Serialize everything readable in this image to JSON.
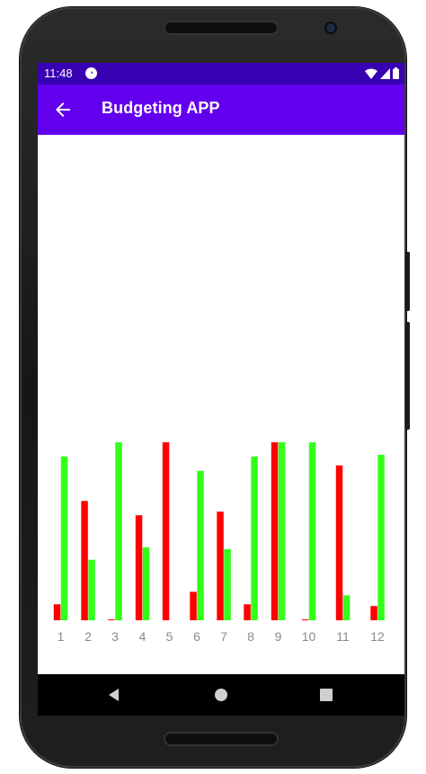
{
  "status_bar": {
    "time": "11:48",
    "app_icon": "app-notification-icon",
    "icons": [
      "wifi-icon",
      "signal-icon",
      "battery-icon"
    ]
  },
  "app_bar": {
    "title": "Budgeting APP",
    "back_icon": "arrow-back-icon",
    "color": "#6200ee",
    "status_color": "#3700b3"
  },
  "chart_data": {
    "type": "bar",
    "categories": [
      "1",
      "2",
      "3",
      "4",
      "5",
      "6",
      "7",
      "8",
      "9",
      "10",
      "11",
      "12"
    ],
    "series": [
      {
        "color": "#ff0000",
        "values": [
          9,
          67,
          0.5,
          59,
          100,
          16,
          61,
          9,
          100,
          0.5,
          87,
          8
        ]
      },
      {
        "color": "#33ff1a",
        "values": [
          92,
          34,
          100,
          41,
          0,
          84,
          40,
          92,
          100,
          100,
          14,
          93
        ]
      }
    ],
    "ylim": [
      0,
      100
    ],
    "grid": false,
    "legend": "none"
  },
  "nav_bar": {
    "buttons": [
      "back-triangle-icon",
      "home-circle-icon",
      "recents-square-icon"
    ]
  }
}
